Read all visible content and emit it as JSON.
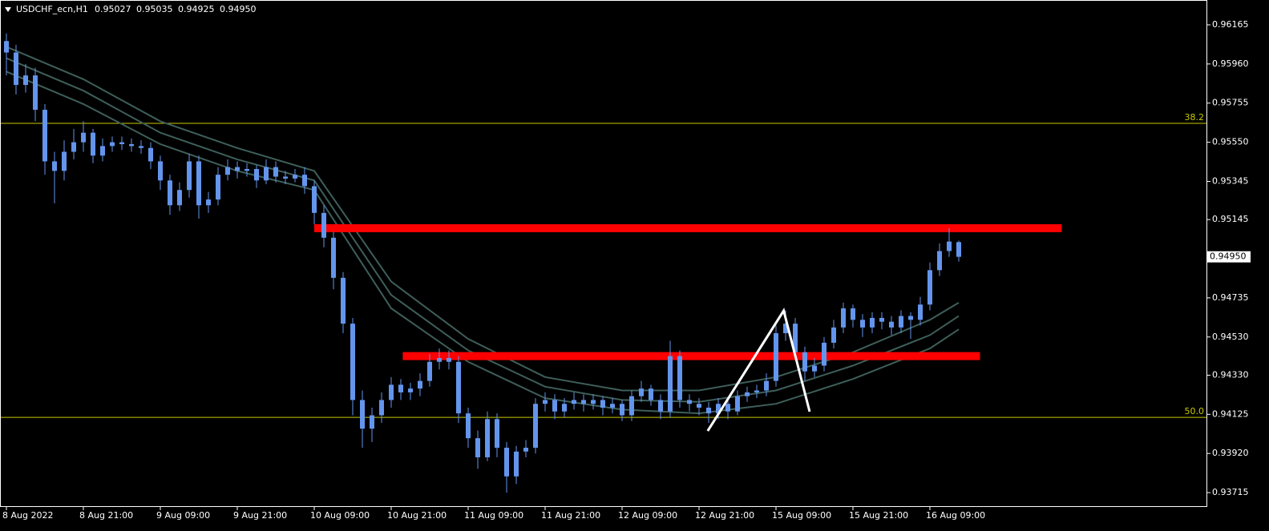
{
  "chart_data": {
    "type": "candlestick",
    "symbol": "USDCHF_ecn,H1",
    "header_values": [
      "0.95027",
      "0.95035",
      "0.94925",
      "0.94950"
    ],
    "xlim": [
      -0.667,
      124.75
    ],
    "ylim": [
      0.93644,
      0.96295
    ],
    "yticks": [
      0.96165,
      {
        "value": 0.9596,
        "label": "0.95960"
      },
      0.95755,
      {
        "value": 0.9555,
        "label": "0.95550"
      },
      0.95345,
      0.95145,
      0.94735,
      {
        "value": 0.9453,
        "label": "0.94530"
      },
      {
        "value": 0.9433,
        "label": "0.94330"
      },
      0.94125,
      {
        "value": 0.9392,
        "label": "0.93920"
      },
      0.93715
    ],
    "xticks": [
      {
        "value": 0,
        "label": "8 Aug 2022"
      },
      {
        "value": 8,
        "label": "8 Aug 21:00"
      },
      {
        "value": 16,
        "label": "9 Aug 09:00"
      },
      {
        "value": 24,
        "label": "9 Aug 21:00"
      },
      {
        "value": 32,
        "label": "10 Aug 09:00"
      },
      {
        "value": 40,
        "label": "10 Aug 21:00"
      },
      {
        "value": 48,
        "label": "11 Aug 09:00"
      },
      {
        "value": 56,
        "label": "11 Aug 21:00"
      },
      {
        "value": 64,
        "label": "12 Aug 09:00"
      },
      {
        "value": 72,
        "label": "12 Aug 21:00"
      },
      {
        "value": 80,
        "label": "15 Aug 09:00"
      },
      {
        "value": 88,
        "label": "15 Aug 21:00"
      },
      {
        "value": 96,
        "label": "16 Aug 09:00"
      }
    ],
    "candle_color": "#6495ed",
    "ohlc": [
      [
        0.9608,
        0.9612,
        0.959,
        0.9602
      ],
      [
        0.9602,
        0.9606,
        0.958,
        0.9585
      ],
      [
        0.9585,
        0.9596,
        0.9581,
        0.959
      ],
      [
        0.959,
        0.9594,
        0.9566,
        0.9572
      ],
      [
        0.9572,
        0.9575,
        0.9538,
        0.9545
      ],
      [
        0.9545,
        0.955,
        0.9523,
        0.954
      ],
      [
        0.954,
        0.9556,
        0.9535,
        0.955
      ],
      [
        0.955,
        0.9562,
        0.9546,
        0.9555
      ],
      [
        0.9555,
        0.9566,
        0.955,
        0.956
      ],
      [
        0.956,
        0.9562,
        0.9544,
        0.9548
      ],
      [
        0.9548,
        0.9557,
        0.9545,
        0.9553
      ],
      [
        0.9553,
        0.9558,
        0.955,
        0.9555
      ],
      [
        0.9555,
        0.9558,
        0.9551,
        0.9554
      ],
      [
        0.9554,
        0.9557,
        0.955,
        0.9553
      ],
      [
        0.9553,
        0.9556,
        0.9549,
        0.9552
      ],
      [
        0.9552,
        0.9555,
        0.9541,
        0.9545
      ],
      [
        0.9545,
        0.9548,
        0.953,
        0.9535
      ],
      [
        0.9535,
        0.9538,
        0.9517,
        0.9522
      ],
      [
        0.9522,
        0.9534,
        0.9519,
        0.953
      ],
      [
        0.953,
        0.9549,
        0.9526,
        0.9545
      ],
      [
        0.9545,
        0.9548,
        0.9515,
        0.9522
      ],
      [
        0.9522,
        0.9529,
        0.9518,
        0.9525
      ],
      [
        0.9525,
        0.9542,
        0.9522,
        0.9538
      ],
      [
        0.9538,
        0.9546,
        0.9535,
        0.9542
      ],
      [
        0.9542,
        0.9545,
        0.9536,
        0.954
      ],
      [
        0.954,
        0.9544,
        0.9537,
        0.9541
      ],
      [
        0.9541,
        0.9543,
        0.9531,
        0.9535
      ],
      [
        0.9535,
        0.9546,
        0.9533,
        0.9542
      ],
      [
        0.9542,
        0.9545,
        0.9534,
        0.9537
      ],
      [
        0.9537,
        0.954,
        0.9533,
        0.9536
      ],
      [
        0.9536,
        0.9541,
        0.9534,
        0.9538
      ],
      [
        0.9538,
        0.9542,
        0.9528,
        0.9532
      ],
      [
        0.9532,
        0.9535,
        0.9512,
        0.9518
      ],
      [
        0.9518,
        0.9522,
        0.95,
        0.9505
      ],
      [
        0.9505,
        0.9508,
        0.9478,
        0.9484
      ],
      [
        0.9484,
        0.9487,
        0.9455,
        0.946
      ],
      [
        0.946,
        0.9463,
        0.9412,
        0.942
      ],
      [
        0.942,
        0.9425,
        0.9395,
        0.9405
      ],
      [
        0.9405,
        0.9416,
        0.9398,
        0.9412
      ],
      [
        0.9412,
        0.9424,
        0.9408,
        0.942
      ],
      [
        0.942,
        0.9432,
        0.9416,
        0.9428
      ],
      [
        0.9428,
        0.9431,
        0.942,
        0.9424
      ],
      [
        0.9424,
        0.9429,
        0.942,
        0.9426
      ],
      [
        0.9426,
        0.9434,
        0.9422,
        0.943
      ],
      [
        0.943,
        0.9444,
        0.9427,
        0.944
      ],
      [
        0.944,
        0.9447,
        0.9436,
        0.9442
      ],
      [
        0.9442,
        0.9446,
        0.9436,
        0.944
      ],
      [
        0.944,
        0.9443,
        0.9408,
        0.9413
      ],
      [
        0.9413,
        0.9416,
        0.9395,
        0.94
      ],
      [
        0.94,
        0.9404,
        0.9384,
        0.939
      ],
      [
        0.939,
        0.9414,
        0.9388,
        0.941
      ],
      [
        0.941,
        0.9413,
        0.939,
        0.9395
      ],
      [
        0.9395,
        0.9398,
        0.93715,
        0.938
      ],
      [
        0.938,
        0.9396,
        0.9376,
        0.9393
      ],
      [
        0.9393,
        0.9399,
        0.939,
        0.9395
      ],
      [
        0.9395,
        0.9421,
        0.9392,
        0.9418
      ],
      [
        0.9418,
        0.9424,
        0.9414,
        0.942
      ],
      [
        0.942,
        0.9423,
        0.941,
        0.9414
      ],
      [
        0.9414,
        0.9421,
        0.9411,
        0.9418
      ],
      [
        0.9418,
        0.9424,
        0.9415,
        0.942
      ],
      [
        0.942,
        0.9423,
        0.9414,
        0.9418
      ],
      [
        0.9418,
        0.9423,
        0.9415,
        0.942
      ],
      [
        0.942,
        0.9422,
        0.9412,
        0.9416
      ],
      [
        0.9416,
        0.9421,
        0.9413,
        0.9418
      ],
      [
        0.9418,
        0.942,
        0.9409,
        0.9412
      ],
      [
        0.9412,
        0.9425,
        0.9409,
        0.9422
      ],
      [
        0.9422,
        0.943,
        0.9419,
        0.9426
      ],
      [
        0.9426,
        0.9428,
        0.9417,
        0.942
      ],
      [
        0.942,
        0.9423,
        0.941,
        0.9414
      ],
      [
        0.9414,
        0.9451,
        0.9411,
        0.9443
      ],
      [
        0.9443,
        0.9446,
        0.9416,
        0.942
      ],
      [
        0.942,
        0.9423,
        0.9414,
        0.9418
      ],
      [
        0.9418,
        0.9421,
        0.9412,
        0.9416
      ],
      [
        0.9416,
        0.9419,
        0.9408,
        0.9413
      ],
      [
        0.9413,
        0.9421,
        0.941,
        0.9418
      ],
      [
        0.9418,
        0.942,
        0.941,
        0.9414
      ],
      [
        0.9414,
        0.9425,
        0.9412,
        0.9422
      ],
      [
        0.9422,
        0.9427,
        0.9419,
        0.9424
      ],
      [
        0.9424,
        0.9428,
        0.9421,
        0.9425
      ],
      [
        0.9425,
        0.9434,
        0.9422,
        0.943
      ],
      [
        0.943,
        0.9459,
        0.9427,
        0.9455
      ],
      [
        0.9455,
        0.9467,
        0.9451,
        0.946
      ],
      [
        0.946,
        0.9463,
        0.9441,
        0.9445
      ],
      [
        0.9445,
        0.9448,
        0.943,
        0.9435
      ],
      [
        0.9435,
        0.9442,
        0.9432,
        0.9438
      ],
      [
        0.9438,
        0.9453,
        0.9435,
        0.945
      ],
      [
        0.945,
        0.9462,
        0.9447,
        0.9458
      ],
      [
        0.9458,
        0.9471,
        0.9455,
        0.9468
      ],
      [
        0.9468,
        0.947,
        0.9458,
        0.9462
      ],
      [
        0.9462,
        0.9465,
        0.9453,
        0.9458
      ],
      [
        0.9458,
        0.9466,
        0.9455,
        0.9463
      ],
      [
        0.9463,
        0.9466,
        0.9457,
        0.9461
      ],
      [
        0.9461,
        0.9464,
        0.9454,
        0.9458
      ],
      [
        0.9458,
        0.9467,
        0.9455,
        0.9464
      ],
      [
        0.9464,
        0.9466,
        0.9452,
        0.9462
      ],
      [
        0.9462,
        0.9474,
        0.9459,
        0.947
      ],
      [
        0.947,
        0.9492,
        0.9467,
        0.9488
      ],
      [
        0.9488,
        0.9502,
        0.9485,
        0.9498
      ],
      [
        0.9498,
        0.951,
        0.9495,
        0.9503
      ],
      [
        0.95027,
        0.95035,
        0.94925,
        0.9495
      ]
    ],
    "ma_x": [
      0,
      8,
      16,
      24,
      32,
      40,
      48,
      56,
      64,
      72,
      80,
      88,
      96,
      99
    ],
    "ma_color": "#3e5f5a",
    "moving_averages": [
      [
        0.9605,
        0.9588,
        0.9566,
        0.9552,
        0.954,
        0.9482,
        0.9452,
        0.9432,
        0.9425,
        0.9425,
        0.9432,
        0.9445,
        0.9462,
        0.9471
      ],
      [
        0.9599,
        0.9582,
        0.956,
        0.9546,
        0.9535,
        0.9475,
        0.9446,
        0.9427,
        0.942,
        0.9419,
        0.9425,
        0.9438,
        0.9454,
        0.9464
      ],
      [
        0.9592,
        0.9575,
        0.9554,
        0.954,
        0.953,
        0.9468,
        0.944,
        0.9421,
        0.9415,
        0.9413,
        0.9418,
        0.9431,
        0.9447,
        0.9457
      ]
    ],
    "fib_color": "#c8c800",
    "fib": [
      {
        "level": 38.2,
        "price": 0.95649
      },
      {
        "level": {
          "value": 50,
          "label": "50.0"
        },
        "price": 0.94109
      }
    ],
    "zone_color": "#ff0000",
    "zones": [
      {
        "price": 0.951,
        "from": 32,
        "to": 109.7
      },
      {
        "price": 0.9443,
        "from": 41.2,
        "to": 101.2
      }
    ],
    "zigzag": {
      "x": [
        72.9,
        80.8,
        83.5
      ],
      "y": [
        0.94038,
        0.94668,
        0.94139
      ]
    },
    "last_price": {
      "value": 0.9495,
      "label": "0.94950"
    }
  }
}
